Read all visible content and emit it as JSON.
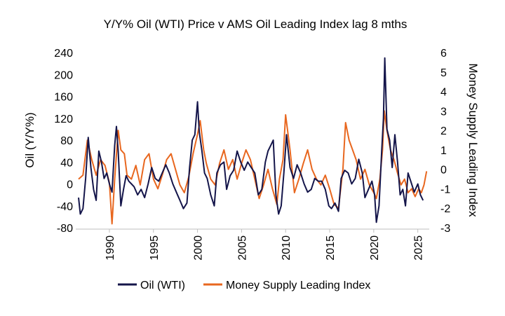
{
  "chart_data": {
    "type": "line",
    "title": "Y/Y% Oil (WTI) Price v AMS Oil Leading Index lag 8 mths",
    "ylabel_left": "Oil (Y/Y%)",
    "ylabel_right": "Money Supply Leading Index",
    "xlim": [
      1986.5,
      2026.3
    ],
    "ylim_left": [
      -80,
      240
    ],
    "ylim_right": [
      -3,
      6
    ],
    "x_ticks": [
      "1990",
      "1995",
      "2000",
      "2005",
      "2010",
      "2015",
      "2020",
      "2025"
    ],
    "y_ticks_left": [
      "240",
      "200",
      "160",
      "120",
      "80",
      "40",
      "0",
      "-40",
      "-80"
    ],
    "y_ticks_right": [
      "6",
      "5",
      "4",
      "3",
      "2",
      "1",
      "0",
      "-1",
      "-2",
      "-3"
    ],
    "legend": "bottom",
    "series": [
      {
        "name": "Oil (WTI)",
        "color": "#14154a",
        "axis": "left",
        "x": [
          1986.5,
          1986.7,
          1987.0,
          1987.3,
          1987.6,
          1987.9,
          1988.2,
          1988.5,
          1988.8,
          1989.1,
          1989.4,
          1989.7,
          1990.0,
          1990.3,
          1990.6,
          1990.8,
          1991.0,
          1991.3,
          1991.6,
          1991.9,
          1992.2,
          1992.5,
          1992.8,
          1993.2,
          1993.6,
          1994.0,
          1994.4,
          1994.8,
          1995.2,
          1995.6,
          1996.0,
          1996.4,
          1996.8,
          1997.2,
          1997.6,
          1998.0,
          1998.4,
          1998.8,
          1999.1,
          1999.4,
          1999.7,
          2000.0,
          2000.2,
          2000.5,
          2000.8,
          2001.1,
          2001.5,
          2001.9,
          2002.2,
          2002.6,
          2003.0,
          2003.3,
          2003.7,
          2004.1,
          2004.5,
          2004.9,
          2005.3,
          2005.7,
          2006.1,
          2006.5,
          2006.9,
          2007.3,
          2007.7,
          2008.0,
          2008.3,
          2008.6,
          2008.9,
          2009.2,
          2009.5,
          2009.8,
          2010.1,
          2010.5,
          2010.9,
          2011.3,
          2011.7,
          2012.1,
          2012.5,
          2012.9,
          2013.3,
          2013.7,
          2014.1,
          2014.5,
          2014.9,
          2015.2,
          2015.6,
          2016.0,
          2016.3,
          2016.7,
          2017.1,
          2017.5,
          2017.9,
          2018.3,
          2018.7,
          2019.0,
          2019.4,
          2019.8,
          2020.1,
          2020.3,
          2020.6,
          2020.9,
          2021.1,
          2021.25,
          2021.5,
          2021.8,
          2022.1,
          2022.4,
          2022.7,
          2023.0,
          2023.3,
          2023.6,
          2023.9,
          2024.2,
          2024.6,
          2025.0,
          2025.3,
          2025.6
        ],
        "values": [
          -25,
          -55,
          -45,
          10,
          85,
          30,
          -10,
          -30,
          60,
          40,
          10,
          20,
          0,
          -15,
          70,
          105,
          60,
          -40,
          -10,
          15,
          5,
          0,
          -5,
          -20,
          -10,
          -25,
          0,
          30,
          10,
          5,
          20,
          35,
          20,
          0,
          -15,
          -30,
          -45,
          -35,
          30,
          80,
          90,
          150,
          95,
          60,
          20,
          10,
          -20,
          -40,
          20,
          35,
          40,
          -10,
          15,
          25,
          60,
          40,
          25,
          40,
          30,
          20,
          -20,
          -10,
          40,
          60,
          70,
          80,
          -20,
          -55,
          -40,
          20,
          90,
          30,
          10,
          35,
          20,
          0,
          -15,
          -10,
          10,
          5,
          5,
          -10,
          -40,
          -45,
          -35,
          -50,
          10,
          25,
          20,
          0,
          10,
          45,
          20,
          -25,
          -10,
          5,
          -20,
          -70,
          -40,
          60,
          120,
          230,
          100,
          80,
          30,
          90,
          40,
          -20,
          -10,
          -40,
          20,
          5,
          -15,
          0,
          -20,
          -30
        ]
      },
      {
        "name": "Money Supply Leading Index",
        "color": "#e8671f",
        "axis": "right",
        "x": [
          1986.5,
          1987.0,
          1987.5,
          1988.0,
          1988.5,
          1989.0,
          1989.5,
          1990.0,
          1990.3,
          1990.6,
          1991.0,
          1991.3,
          1991.7,
          1992.0,
          1992.5,
          1993.0,
          1993.5,
          1994.0,
          1994.5,
          1995.0,
          1995.5,
          1996.0,
          1996.5,
          1997.0,
          1997.5,
          1998.0,
          1998.5,
          1999.0,
          1999.5,
          2000.0,
          2000.3,
          2000.7,
          2001.0,
          2001.5,
          2002.0,
          2002.5,
          2003.0,
          2003.5,
          2004.0,
          2004.5,
          2005.0,
          2005.5,
          2006.0,
          2006.5,
          2007.0,
          2007.5,
          2008.0,
          2008.5,
          2009.0,
          2009.3,
          2009.7,
          2010.0,
          2010.5,
          2011.0,
          2011.5,
          2012.0,
          2012.5,
          2013.0,
          2013.5,
          2014.0,
          2014.5,
          2015.0,
          2015.5,
          2016.0,
          2016.5,
          2016.8,
          2017.2,
          2017.6,
          2018.0,
          2018.5,
          2019.0,
          2019.5,
          2020.0,
          2020.3,
          2020.7,
          2021.0,
          2021.2,
          2021.5,
          2021.9,
          2022.3,
          2022.7,
          2023.1,
          2023.5,
          2023.9,
          2024.3,
          2024.7,
          2025.1,
          2025.4,
          2025.7,
          2026.0
        ],
        "values": [
          -0.5,
          -0.3,
          1.5,
          0.5,
          -0.3,
          0.5,
          0.2,
          -0.7,
          -2.8,
          -0.5,
          2.0,
          1.0,
          0.8,
          -0.3,
          -0.5,
          0.2,
          -0.8,
          0.5,
          0.8,
          -0.5,
          -1.0,
          -0.3,
          0.5,
          0.8,
          0.0,
          -0.8,
          -1.2,
          -0.4,
          0.8,
          1.8,
          2.5,
          1.0,
          0.3,
          -0.5,
          -0.8,
          0.3,
          1.0,
          0.0,
          0.5,
          -0.5,
          0.3,
          1.0,
          0.5,
          -0.5,
          -1.5,
          -0.8,
          0.0,
          -1.0,
          -1.8,
          -0.5,
          0.5,
          2.8,
          1.0,
          -1.2,
          -0.5,
          0.3,
          1.0,
          0.0,
          -0.5,
          -0.8,
          -0.3,
          -1.0,
          -1.8,
          -2.0,
          0.0,
          2.4,
          1.5,
          1.0,
          0.5,
          -0.5,
          0.0,
          -0.8,
          -1.2,
          -1.5,
          -0.5,
          1.0,
          3.0,
          2.0,
          1.0,
          0.5,
          -0.2,
          -0.8,
          -0.5,
          -1.2,
          -1.0,
          -1.4,
          -1.0,
          -1.2,
          -0.8,
          -0.1
        ]
      }
    ]
  }
}
